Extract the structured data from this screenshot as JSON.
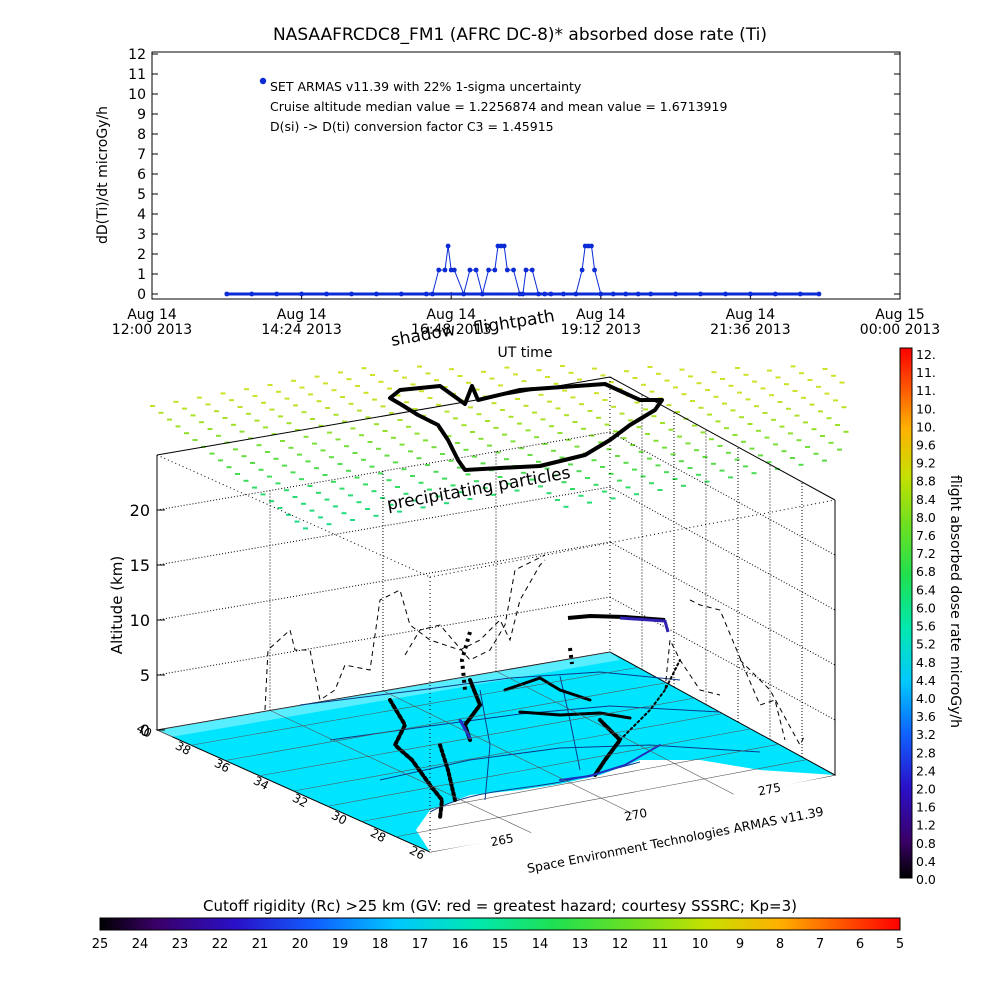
{
  "top_chart": {
    "title": "NASAAFRCDC8_FM1 (AFRC DC-8)* absorbed dose rate (Ti)",
    "ylabel": "dD(Ti)/dt microGy/h",
    "xlabel": "UT time",
    "annotations": [
      "SET ARMAS v11.39 with 22% 1-sigma uncertainty",
      "Cruise altitude median value = 1.2256874 and mean value = 1.6713919",
      "D(si) -> D(ti) conversion factor C3 = 1.45915"
    ],
    "x_ticks": [
      {
        "l1": "Aug 14",
        "l2": "12:00 2013"
      },
      {
        "l1": "Aug 14",
        "l2": "14:24 2013"
      },
      {
        "l1": "Aug 14",
        "l2": "16:48 2013"
      },
      {
        "l1": "Aug 14",
        "l2": "19:12 2013"
      },
      {
        "l1": "Aug 14",
        "l2": "21:36 2013"
      },
      {
        "l1": "Aug 15",
        "l2": "00:00 2013"
      }
    ],
    "series_color": "#0a2bd6"
  },
  "scene": {
    "label_shadow": "shadow",
    "label_flightpath": "flightpath",
    "label_particles": "precipitating particles",
    "credit": "Space Environment Technologies ARMAS v11.39",
    "zlabel": "Altitude (km)",
    "z_ticks": [
      "0",
      "5",
      "10",
      "15",
      "20"
    ],
    "lat_ticks": [
      "40",
      "38",
      "36",
      "34",
      "32",
      "30",
      "28",
      "26"
    ],
    "lon_ticks": [
      "265",
      "270",
      "275"
    ],
    "ground_color": "#00e5ff"
  },
  "colorbar_right": {
    "label": "flight absorbed dose rate microGy/h",
    "ticks": [
      "12.",
      "11.",
      "11.",
      "10.",
      "10.",
      "9.6",
      "9.2",
      "8.8",
      "8.4",
      "8.0",
      "7.6",
      "7.2",
      "6.8",
      "6.4",
      "6.0",
      "5.6",
      "5.2",
      "4.8",
      "4.4",
      "4.0",
      "3.6",
      "3.2",
      "2.8",
      "2.4",
      "2.0",
      "1.6",
      "1.2",
      "0.8",
      "0.4",
      "0.0"
    ]
  },
  "colorbar_bottom": {
    "title": "Cutoff rigidity (Rc) >25 km (GV: red = greatest hazard; courtesy SSSRC; Kp=3)",
    "ticks": [
      "25",
      "24",
      "23",
      "22",
      "21",
      "20",
      "19",
      "18",
      "17",
      "16",
      "15",
      "14",
      "13",
      "12",
      "11",
      "10",
      "9",
      "8",
      "7",
      "6",
      "5"
    ]
  },
  "chart_data": {
    "type": "scatter",
    "title": "NASAAFRCDC8_FM1 (AFRC DC-8)* absorbed dose rate (Ti)",
    "xlabel": "UT time",
    "ylabel": "dD(Ti)/dt microGy/h",
    "x_unit": "hours UT on 2013-08-14",
    "xlim": [
      12.0,
      24.0
    ],
    "ylim": [
      0,
      12
    ],
    "y_ticks": [
      0,
      1,
      2,
      3,
      4,
      5,
      6,
      7,
      8,
      9,
      10,
      11,
      12
    ],
    "series": [
      {
        "x": [
          13.2,
          13.6,
          14.0,
          14.4,
          14.8,
          15.2,
          15.6,
          16.0,
          16.4,
          16.5,
          16.6,
          16.7,
          16.75,
          16.8,
          16.85,
          17.0,
          17.1,
          17.2,
          17.3,
          17.4,
          17.5,
          17.55,
          17.6,
          17.65,
          17.7,
          17.8,
          17.9,
          17.95,
          18.0,
          18.1,
          18.2,
          18.3,
          18.4,
          18.6,
          18.8,
          18.9,
          18.95,
          19.0,
          19.05,
          19.1,
          19.2,
          19.4,
          19.6,
          19.8,
          20.0,
          20.4,
          20.8,
          21.2,
          21.6,
          22.0,
          22.4,
          22.7
        ],
        "values": [
          0.0,
          0.0,
          0.0,
          0.0,
          0.0,
          0.0,
          0.0,
          0.0,
          0.0,
          0.0,
          1.2,
          1.2,
          2.4,
          1.2,
          1.2,
          0.0,
          1.2,
          1.2,
          0.0,
          1.2,
          1.2,
          2.4,
          2.4,
          2.4,
          1.2,
          1.2,
          0.0,
          0.0,
          1.2,
          1.2,
          0.0,
          0.0,
          0.0,
          0.0,
          0.0,
          1.2,
          2.4,
          2.4,
          2.4,
          1.2,
          0.0,
          0.0,
          0.0,
          0.0,
          0.0,
          0.0,
          0.0,
          0.0,
          0.0,
          0.0,
          0.0,
          0.0
        ]
      }
    ]
  }
}
